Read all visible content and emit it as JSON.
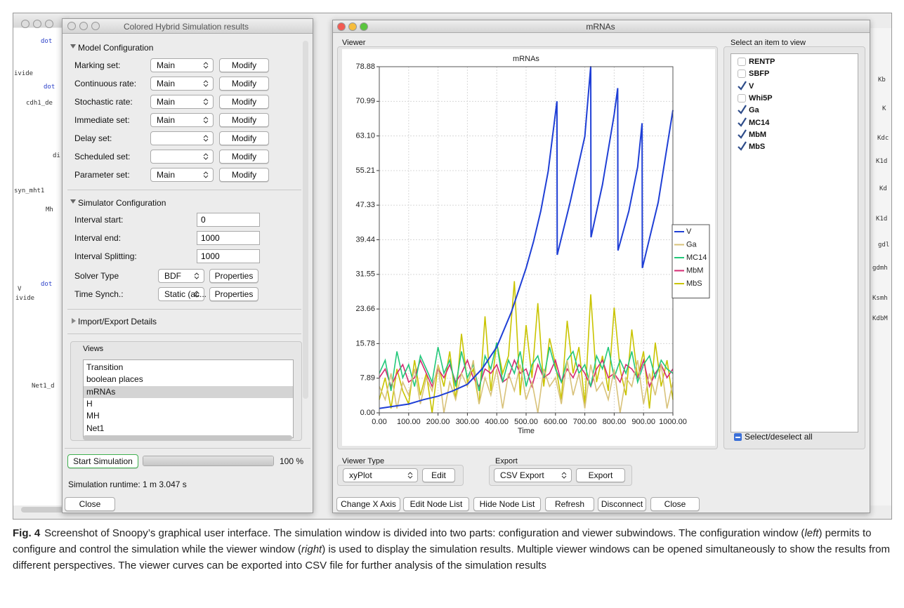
{
  "window_left": {
    "title": "Colored Hybrid Simulation results",
    "model_configuration": {
      "heading": "Model Configuration",
      "rows": [
        {
          "label": "Marking set:",
          "value": "Main",
          "button": "Modify"
        },
        {
          "label": "Continuous rate:",
          "value": "Main",
          "button": "Modify"
        },
        {
          "label": "Stochastic  rate:",
          "value": "Main",
          "button": "Modify"
        },
        {
          "label": "Immediate set:",
          "value": "Main",
          "button": "Modify"
        },
        {
          "label": "Delay set:",
          "button": "Modify"
        },
        {
          "label": "Scheduled set:",
          "button": "Modify"
        },
        {
          "label": "Parameter set:",
          "value": "Main",
          "button": "Modify"
        }
      ]
    },
    "simulator_configuration": {
      "heading": "Simulator Configuration",
      "fields": [
        {
          "label": "Interval start:",
          "value": 0
        },
        {
          "label": "Interval end:",
          "value": 1000
        },
        {
          "label": "Interval Splitting:",
          "value": 1000
        }
      ],
      "choices": [
        {
          "label": "Solver Type",
          "value": "BDF",
          "button": "Properties"
        },
        {
          "label": "Time Synch.:",
          "value": "Static (ac...",
          "button": "Properties"
        }
      ]
    },
    "import_export": "Import/Export Details",
    "views": {
      "label": "Views",
      "items": [
        "Transition",
        "boolean places",
        "mRNAs",
        "H",
        "MH",
        "Net1"
      ],
      "selected": 2
    },
    "start_button": "Start Simulation",
    "progress": {
      "value": 100,
      "label": "100 %"
    },
    "runtime": "Simulation runtime:  1 m 3.047 s",
    "close": "Close"
  },
  "window_right": {
    "title": "mRNAs",
    "viewer_label": "Viewer",
    "item_panel": {
      "label": "Select an item to view",
      "items": [
        {
          "name": "RENTP",
          "checked": false
        },
        {
          "name": "SBFP",
          "checked": false
        },
        {
          "name": "V",
          "checked": true
        },
        {
          "name": "Whi5P",
          "checked": false
        },
        {
          "name": "Ga",
          "checked": true
        },
        {
          "name": "MC14",
          "checked": true
        },
        {
          "name": "MbM",
          "checked": true
        },
        {
          "name": "MbS",
          "checked": true
        }
      ],
      "toggle_all": "Select/deselect all"
    },
    "viewer_type": {
      "label": "Viewer Type",
      "value": "xyPlot",
      "button": "Edit"
    },
    "export": {
      "label": "Export",
      "value": "CSV Export",
      "button": "Export"
    },
    "buttons": [
      "Change X Axis",
      "Edit Node List",
      "Hide Node List",
      "Refresh",
      "Disconnect",
      "Close"
    ]
  },
  "chart_data": {
    "type": "line",
    "title": "mRNAs",
    "x_label": "Time",
    "xlim": [
      0,
      1000
    ],
    "ylim": [
      0,
      78.88
    ],
    "xticks": [
      {
        "value": 0,
        "label": "0.00"
      },
      {
        "value": 100,
        "label": "100.00"
      },
      {
        "value": 200,
        "label": "200.00"
      },
      {
        "value": 300,
        "label": "300.00"
      },
      {
        "value": 400,
        "label": "400.00"
      },
      {
        "value": 500,
        "label": "500.00"
      },
      {
        "value": 600,
        "label": "600.00"
      },
      {
        "value": 700,
        "label": "700.00"
      },
      {
        "value": 800,
        "label": "800.00"
      },
      {
        "value": 900,
        "label": "900.00"
      },
      {
        "value": 1000,
        "label": "1000.00"
      }
    ],
    "yticks": [
      {
        "value": 0,
        "label": "0.00"
      },
      {
        "value": 7.89,
        "label": "7.89"
      },
      {
        "value": 15.78,
        "label": "15.78"
      },
      {
        "value": 23.66,
        "label": "23.66"
      },
      {
        "value": 31.55,
        "label": "31.55"
      },
      {
        "value": 39.44,
        "label": "39.44"
      },
      {
        "value": 47.33,
        "label": "47.33"
      },
      {
        "value": 55.21,
        "label": "55.21"
      },
      {
        "value": 63.1,
        "label": "63.10"
      },
      {
        "value": 70.99,
        "label": "70.99"
      },
      {
        "value": 78.88,
        "label": "78.88"
      }
    ],
    "grid": true,
    "legend": "right",
    "x": [
      0,
      20,
      40,
      60,
      80,
      100,
      120,
      140,
      160,
      180,
      200,
      220,
      240,
      260,
      280,
      300,
      320,
      340,
      360,
      380,
      400,
      420,
      440,
      460,
      480,
      500,
      520,
      540,
      560,
      580,
      600,
      620,
      640,
      660,
      680,
      700,
      720,
      740,
      760,
      780,
      800,
      820,
      840,
      860,
      880,
      900,
      920,
      940,
      960,
      980,
      1000
    ],
    "series": [
      {
        "name": "V",
        "color": "#1f3fd6",
        "x": [
          0,
          50,
          100,
          150,
          200,
          250,
          300,
          350,
          400,
          450,
          500,
          525,
          550,
          575,
          605,
          606,
          650,
          700,
          720,
          721,
          760,
          800,
          812,
          813,
          850,
          880,
          895,
          896,
          950,
          1000
        ],
        "values": [
          1,
          1.5,
          2,
          3,
          3.8,
          5,
          6.5,
          10,
          15,
          23,
          33,
          39,
          46,
          55,
          71,
          36,
          48,
          63,
          79,
          40,
          52,
          68,
          74,
          37,
          46,
          56,
          66,
          33,
          48,
          69
        ]
      },
      {
        "name": "Ga",
        "color": "#d8c27a",
        "values": [
          6,
          3,
          9,
          1,
          7,
          4,
          10,
          2,
          8,
          5,
          11,
          0,
          7,
          3,
          9,
          6,
          12,
          2,
          8,
          4,
          10,
          1,
          9,
          5,
          11,
          3,
          7,
          0,
          10,
          6,
          8,
          2,
          12,
          4,
          9,
          1,
          11,
          5,
          7,
          3,
          10,
          0,
          8,
          6,
          12,
          2,
          9,
          4,
          11,
          1,
          7
        ]
      },
      {
        "name": "MC14",
        "color": "#22c87a",
        "values": [
          9,
          12,
          5,
          14,
          8,
          11,
          6,
          13,
          10,
          7,
          15,
          9,
          12,
          6,
          14,
          8,
          11,
          5,
          13,
          10,
          16,
          7,
          12,
          9,
          14,
          6,
          11,
          13,
          8,
          15,
          10,
          7,
          12,
          14,
          9,
          11,
          6,
          13,
          10,
          15,
          8,
          12,
          9,
          14,
          7,
          11,
          13,
          8,
          12,
          10,
          9
        ]
      },
      {
        "name": "MbM",
        "color": "#d42a72",
        "values": [
          8,
          10,
          6,
          9,
          11,
          7,
          8,
          12,
          9,
          6,
          10,
          8,
          11,
          7,
          9,
          12,
          8,
          6,
          10,
          9,
          11,
          7,
          8,
          12,
          9,
          10,
          6,
          11,
          8,
          9,
          12,
          7,
          10,
          8,
          11,
          9,
          6,
          10,
          12,
          8,
          9,
          7,
          11,
          10,
          8,
          12,
          6,
          9,
          11,
          8,
          10
        ]
      },
      {
        "name": "MbS",
        "color": "#c9c400",
        "values": [
          3,
          8,
          1,
          10,
          5,
          2,
          12,
          4,
          9,
          0,
          11,
          6,
          14,
          3,
          18,
          7,
          10,
          2,
          22,
          5,
          16,
          9,
          13,
          30,
          4,
          20,
          8,
          25,
          6,
          17,
          11,
          3,
          21,
          9,
          15,
          2,
          27,
          7,
          13,
          5,
          24,
          10,
          4,
          19,
          8,
          14,
          1,
          16,
          6,
          12,
          3
        ]
      }
    ]
  },
  "canvas_labels": [
    "dot",
    "ivide",
    "dot",
    "cdh1_de",
    "di",
    "syn_mht1",
    "Mh",
    "V",
    "dot",
    "ivide",
    "Net1_d",
    "Kb",
    "K",
    "Kdc",
    "K1d",
    "Kd",
    "K1d",
    "gdl",
    "gdmh",
    "Ksmh",
    "KdbM"
  ],
  "caption": {
    "label": "Fig. 4",
    "segments": [
      {
        "text": "Screenshot of Snoopy’s graphical user interface. The simulation window is divided into two parts: configuration and viewer subwindows. The configuration window (",
        "italic": false
      },
      {
        "text": "left",
        "italic": true
      },
      {
        "text": ") permits to configure and control the simulation while the viewer window (",
        "italic": false
      },
      {
        "text": "right",
        "italic": true
      },
      {
        "text": ") is used to display the simulation results. Multiple viewer windows can be opened simultaneously to show the results from different perspectives. The viewer curves can be exported into CSV file for further analysis of the simulation results",
        "italic": false
      }
    ]
  }
}
